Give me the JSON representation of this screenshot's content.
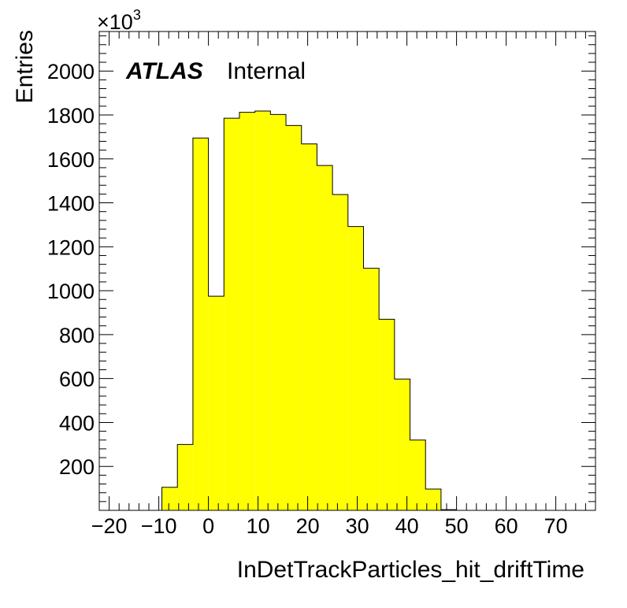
{
  "chart_data": {
    "type": "bar",
    "xlabel": "InDetTrackParticles_hit_driftTime",
    "ylabel": "Entries",
    "y_multiplier": "×10",
    "y_multiplier_exp": "3",
    "label_bold": "ATLAS",
    "label_normal": "Internal",
    "xlim": [
      -22,
      78
    ],
    "ylim": [
      0,
      2180
    ],
    "x_ticks": [
      -20,
      -10,
      0,
      10,
      20,
      30,
      40,
      50,
      60,
      70
    ],
    "x_tick_labels": [
      "−20",
      "−10",
      "0",
      "10",
      "20",
      "30",
      "40",
      "50",
      "60",
      "70"
    ],
    "y_ticks": [
      200,
      400,
      600,
      800,
      1000,
      1200,
      1400,
      1600,
      1800,
      2000
    ],
    "y_tick_labels": [
      "200",
      "400",
      "600",
      "800",
      "1000",
      "1200",
      "1400",
      "1600",
      "1800",
      "2000"
    ],
    "bin_width": 3.125,
    "bin_edges_start": -9.375,
    "values": [
      105,
      300,
      1695,
      975,
      1785,
      1812,
      1818,
      1802,
      1752,
      1668,
      1570,
      1438,
      1292,
      1102,
      870,
      598,
      320,
      97,
      3
    ],
    "fill_color": "#ffff00",
    "line_color": "#000000",
    "grid": false
  }
}
